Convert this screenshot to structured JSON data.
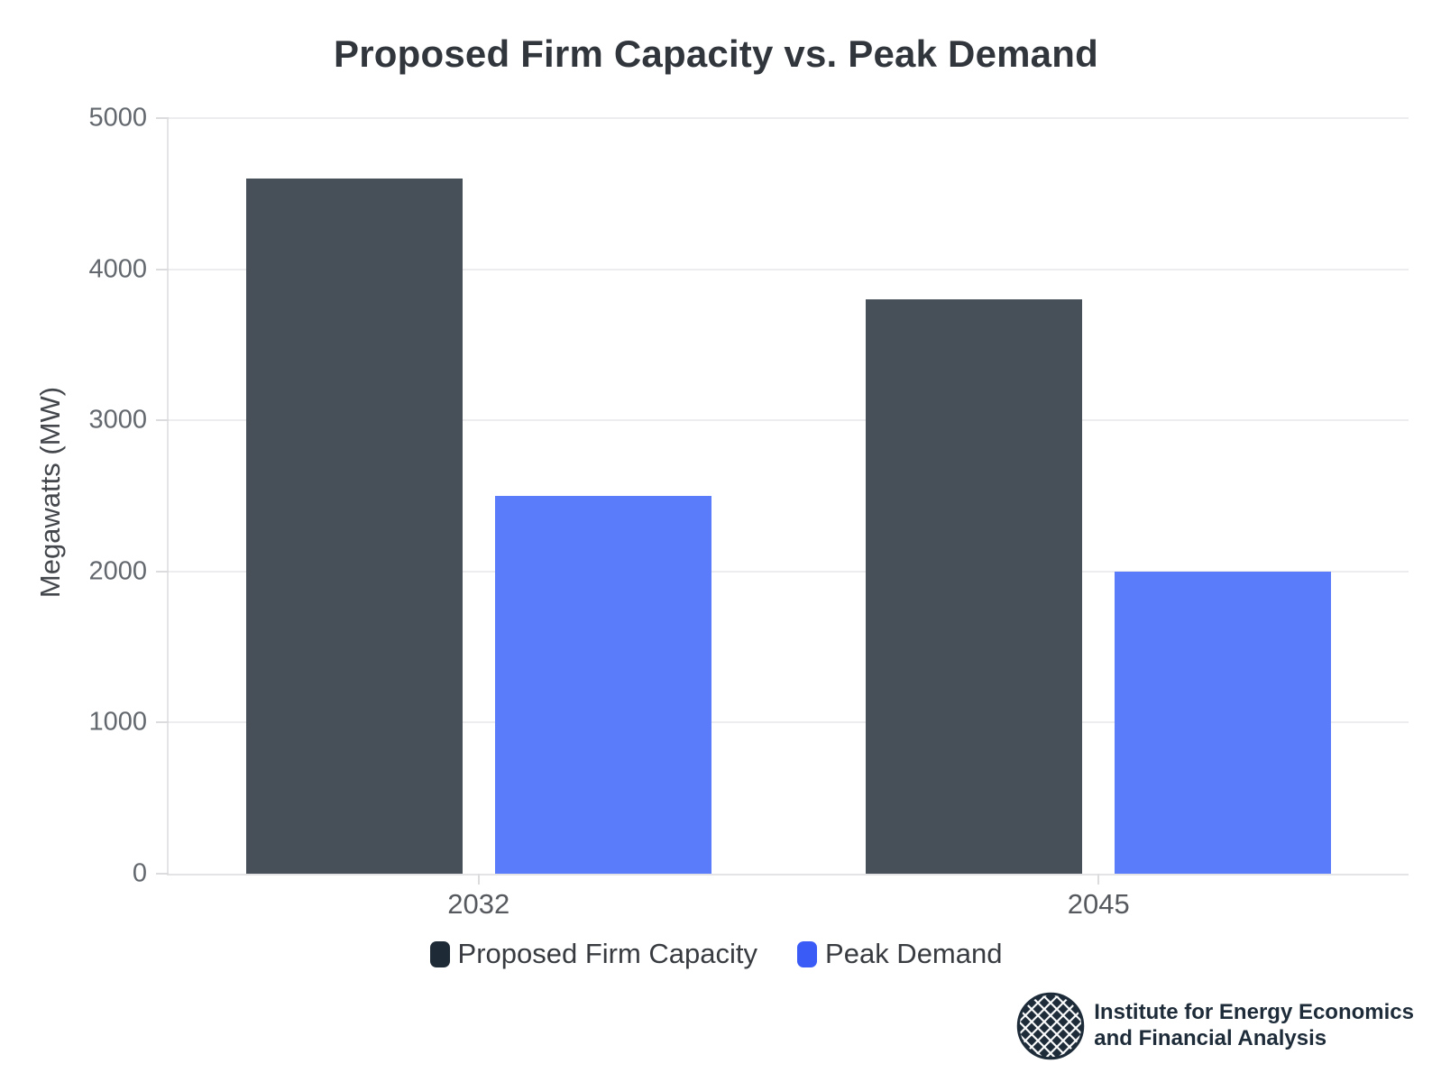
{
  "chart_data": {
    "type": "bar",
    "title": "Proposed Firm Capacity vs. Peak Demand",
    "categories": [
      "2032",
      "2045"
    ],
    "series": [
      {
        "name": "Proposed Firm Capacity",
        "values": [
          4600,
          3800
        ],
        "bar_color": "#475058",
        "legend_color": "#1f2a37"
      },
      {
        "name": "Peak Demand",
        "values": [
          2500,
          2000
        ],
        "bar_color": "#5b7cfa",
        "legend_color": "#3b5bf6"
      }
    ],
    "xlabel": "",
    "ylabel": "Megawatts (MW)",
    "ylim": [
      0,
      5000
    ],
    "yticks": [
      0,
      1000,
      2000,
      3000,
      4000,
      5000
    ],
    "grid": true,
    "legend_position": "bottom"
  },
  "branding": {
    "org_line1": "Institute for Energy Economics",
    "org_line2": "and Financial Analysis",
    "logo_icon": "globe-icon",
    "brand_color": "#1e2c3a"
  }
}
